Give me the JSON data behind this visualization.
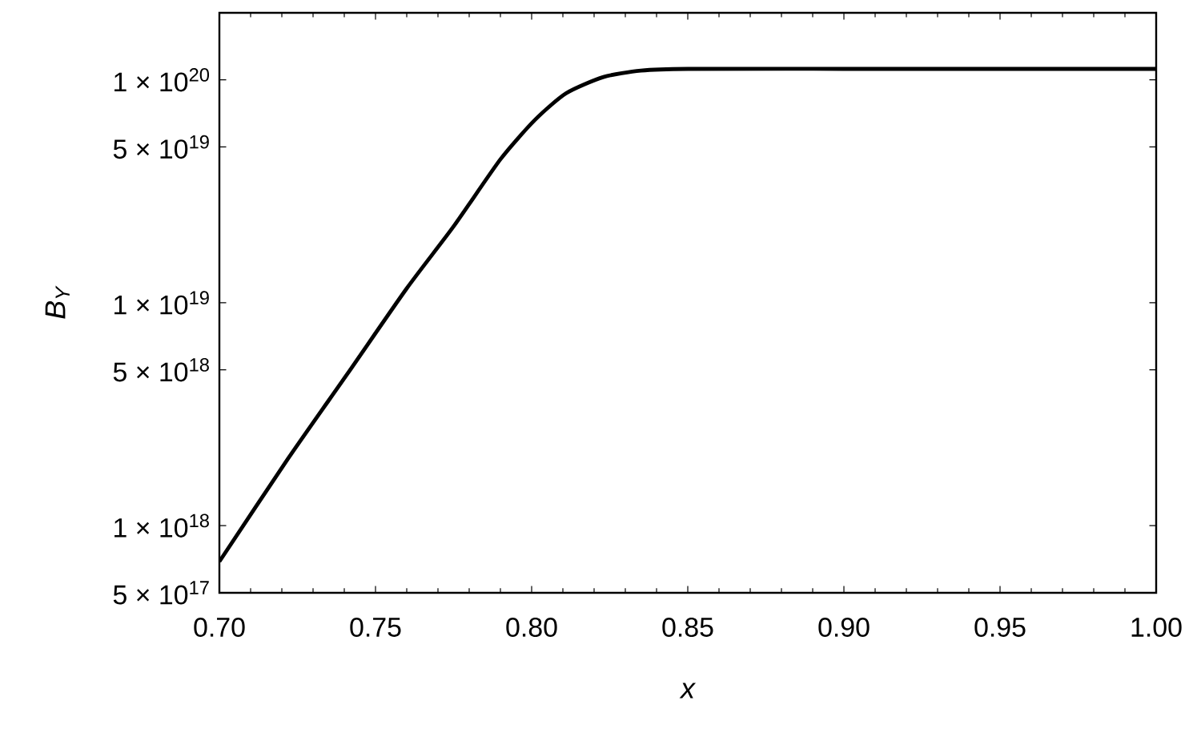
{
  "chart_data": {
    "type": "line",
    "xlabel": "x",
    "ylabel": "B$_{Y}$",
    "log": "y",
    "marker": "none",
    "line_style": "solid",
    "xlim": [
      0.7,
      1.0
    ],
    "ylim": [
      5e+17,
      2e+20
    ],
    "xticks": [
      {
        "value": 0.7,
        "label": "0.70"
      },
      {
        "value": 0.75,
        "label": "0.75"
      },
      {
        "value": 0.8,
        "label": "0.80"
      },
      {
        "value": 0.85,
        "label": "0.85"
      },
      {
        "value": 0.9,
        "label": "0.90"
      },
      {
        "value": 0.95,
        "label": "0.95"
      },
      {
        "value": 1.0,
        "label": "1.00"
      }
    ],
    "yticks": [
      {
        "value": 5e+17,
        "label": "5 × 10$^{17}$"
      },
      {
        "value": 1e+18,
        "label": "1 × 10$^{18}$"
      },
      {
        "value": 5e+18,
        "label": "5 × 10$^{18}$"
      },
      {
        "value": 1e+19,
        "label": "1 × 10$^{19}$"
      },
      {
        "value": 5e+19,
        "label": "5 × 10$^{19}$"
      },
      {
        "value": 1e+20,
        "label": "1 × 10$^{20}$"
      }
    ],
    "x": [
      0.7,
      0.722,
      0.741,
      0.76,
      0.775,
      0.79,
      0.801,
      0.811,
      0.823,
      0.835,
      0.85,
      0.9,
      1.0
    ],
    "series": [
      {
        "color": "#000000",
        "values": [
          6.9e+17,
          2e+18,
          4.8e+18,
          1.16e+19,
          2.2e+19,
          4.4e+19,
          6.6e+19,
          8.7e+19,
          1.03e+20,
          1.1e+20,
          1.12e+20,
          1.12e+20,
          1.12e+20
        ]
      }
    ]
  }
}
